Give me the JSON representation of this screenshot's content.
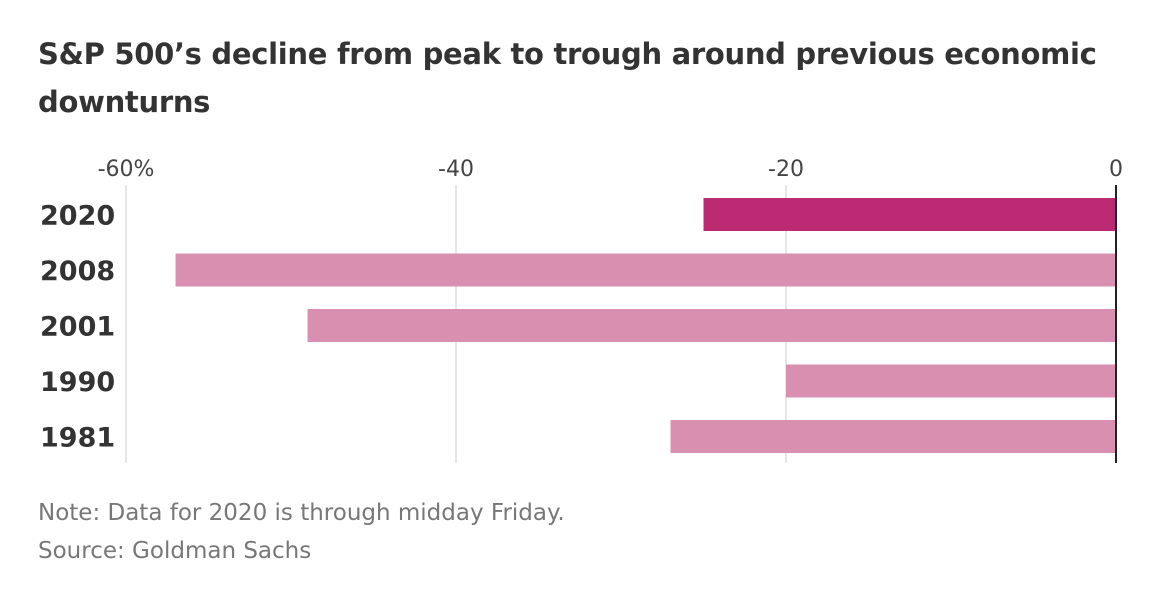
{
  "title": "S&P 500’s decline from peak to trough around previous economic downturns",
  "note": "Note: Data for 2020 is through midday Friday.",
  "source": "Source: Goldman Sachs",
  "colors": {
    "highlight": "#bc2a74",
    "bar": "#d98fb0",
    "grid": "#dddddd",
    "zero_line": "#222222"
  },
  "chart_data": {
    "type": "bar",
    "orientation": "horizontal",
    "categories": [
      "2020",
      "2008",
      "2001",
      "1990",
      "1981"
    ],
    "values": [
      -25,
      -57,
      -49,
      -20,
      -27
    ],
    "highlight_category": "2020",
    "xlim": [
      -60,
      0
    ],
    "xticks": [
      -60,
      -40,
      -20,
      0
    ],
    "xtick_labels": [
      "-60%",
      "-40",
      "-20",
      "0"
    ],
    "grid": true,
    "axis_position": "top"
  }
}
